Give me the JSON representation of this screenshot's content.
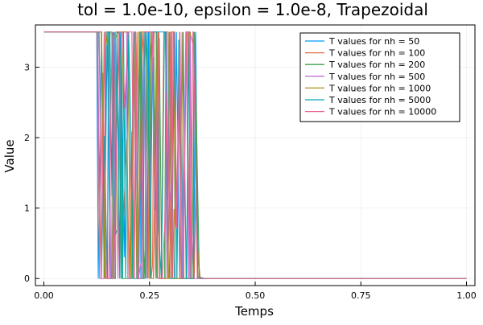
{
  "chart_data": {
    "type": "line",
    "title": "tol = 1.0e-10, epsilon = 1.0e-8, Trapezoidal",
    "xlabel": "Temps",
    "ylabel": "Value",
    "xlim": [
      -0.02,
      1.02
    ],
    "ylim": [
      -0.1,
      3.6
    ],
    "x_ticks": [
      0.0,
      0.25,
      0.5,
      0.75,
      1.0
    ],
    "x_tick_labels": [
      "0.00",
      "0.25",
      "0.50",
      "0.75",
      "1.00"
    ],
    "y_ticks": [
      0,
      1,
      2,
      3
    ],
    "y_tick_labels": [
      "0",
      "1",
      "2",
      "3"
    ],
    "grid": true,
    "legend_position": "top-right",
    "high_value": 3.5,
    "low_value": 0.0,
    "series": [
      {
        "name": "T values for nh = 50",
        "color": "#009AFA",
        "start": 0.11,
        "end": 0.38,
        "osc_start": 0.125,
        "osc_end": 0.365
      },
      {
        "name": "T values for nh = 100",
        "color": "#E36F47",
        "start": 0.12,
        "end": 0.37,
        "osc_start": 0.126,
        "osc_end": 0.362
      },
      {
        "name": "T values for nh = 200",
        "color": "#3EA44E",
        "start": 0.12,
        "end": 0.368,
        "osc_start": 0.127,
        "osc_end": 0.36
      },
      {
        "name": "T values for nh = 500",
        "color": "#C371D2",
        "start": 0.12,
        "end": 0.366,
        "osc_start": 0.128,
        "osc_end": 0.358
      },
      {
        "name": "T values for nh = 1000",
        "color": "#AC8E18",
        "start": 0.12,
        "end": 0.365,
        "osc_start": 0.129,
        "osc_end": 0.356
      },
      {
        "name": "T values for nh = 5000",
        "color": "#00A9AD",
        "start": 0.12,
        "end": 0.364,
        "osc_start": 0.13,
        "osc_end": 0.355
      },
      {
        "name": "T values for nh = 10000",
        "color": "#ED5E93",
        "start": 0.12,
        "end": 0.363,
        "osc_start": 0.131,
        "osc_end": 0.354
      }
    ]
  }
}
